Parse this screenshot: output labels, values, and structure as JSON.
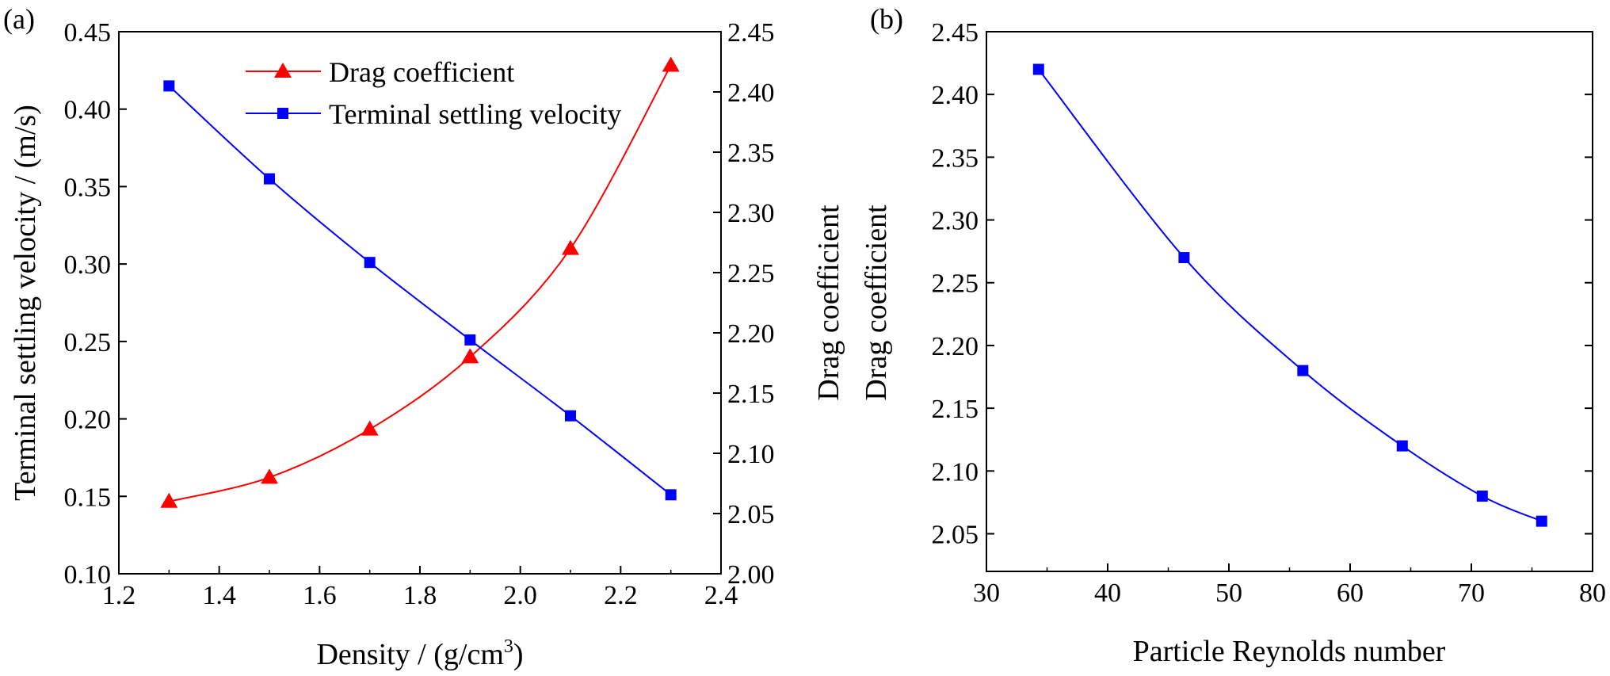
{
  "chart_data": [
    {
      "panel_label": "(a)",
      "type": "line",
      "x": [
        1.3,
        1.5,
        1.7,
        1.9,
        2.1,
        2.3
      ],
      "xlabel_main": "Density / (g/cm",
      "xlabel_sup": "3",
      "xlabel_close": ")",
      "xlim": [
        1.2,
        2.4
      ],
      "xticks": [
        1.2,
        1.4,
        1.6,
        1.8,
        2.0,
        2.2,
        2.4
      ],
      "xtick_labels": [
        "1.2",
        "1.4",
        "1.6",
        "1.8",
        "2.0",
        "2.2",
        "2.4"
      ],
      "ylabel_left": "Terminal settling velocity / (m/s)",
      "ylim_left": [
        0.1,
        0.45
      ],
      "yticks_left": [
        0.1,
        0.15,
        0.2,
        0.25,
        0.3,
        0.35,
        0.4,
        0.45
      ],
      "ytick_labels_left": [
        "0.10",
        "0.15",
        "0.20",
        "0.25",
        "0.30",
        "0.35",
        "0.40",
        "0.45"
      ],
      "ylabel_right": "Drag coefficient",
      "ylim_right": [
        2.0,
        2.45
      ],
      "yticks_right": [
        2.0,
        2.05,
        2.1,
        2.15,
        2.2,
        2.25,
        2.3,
        2.35,
        2.4,
        2.45
      ],
      "ytick_labels_right": [
        "2.00",
        "2.05",
        "2.10",
        "2.15",
        "2.20",
        "2.25",
        "2.30",
        "2.35",
        "2.40",
        "2.45"
      ],
      "legend_position": "top-right",
      "series": [
        {
          "name": "Drag coefficient",
          "axis": "right",
          "marker": "triangle",
          "color": "#ff0000",
          "values": [
            2.06,
            2.08,
            2.12,
            2.18,
            2.27,
            2.422
          ]
        },
        {
          "name": "Terminal settling velocity",
          "axis": "left",
          "marker": "square",
          "color": "#0000ff",
          "values": [
            0.415,
            0.355,
            0.301,
            0.251,
            0.202,
            0.151
          ]
        }
      ]
    },
    {
      "panel_label": "(b)",
      "type": "line",
      "xlabel": "Particle Reynolds number",
      "xlim": [
        30,
        80
      ],
      "xticks": [
        30,
        40,
        50,
        60,
        70,
        80
      ],
      "xtick_labels": [
        "30",
        "40",
        "50",
        "60",
        "70",
        "80"
      ],
      "ylabel": "Drag coefficient",
      "ylim": [
        2.02,
        2.45
      ],
      "yticks": [
        2.05,
        2.1,
        2.15,
        2.2,
        2.25,
        2.3,
        2.35,
        2.4,
        2.45
      ],
      "ytick_labels": [
        "2.05",
        "2.10",
        "2.15",
        "2.20",
        "2.25",
        "2.30",
        "2.35",
        "2.40",
        "2.45"
      ],
      "series": [
        {
          "name": "Drag coefficient",
          "marker": "square",
          "color": "#0000ff",
          "x": [
            34.3,
            46.3,
            56.1,
            64.3,
            70.9,
            75.8
          ],
          "values": [
            2.42,
            2.27,
            2.18,
            2.12,
            2.08,
            2.06
          ]
        }
      ]
    }
  ]
}
